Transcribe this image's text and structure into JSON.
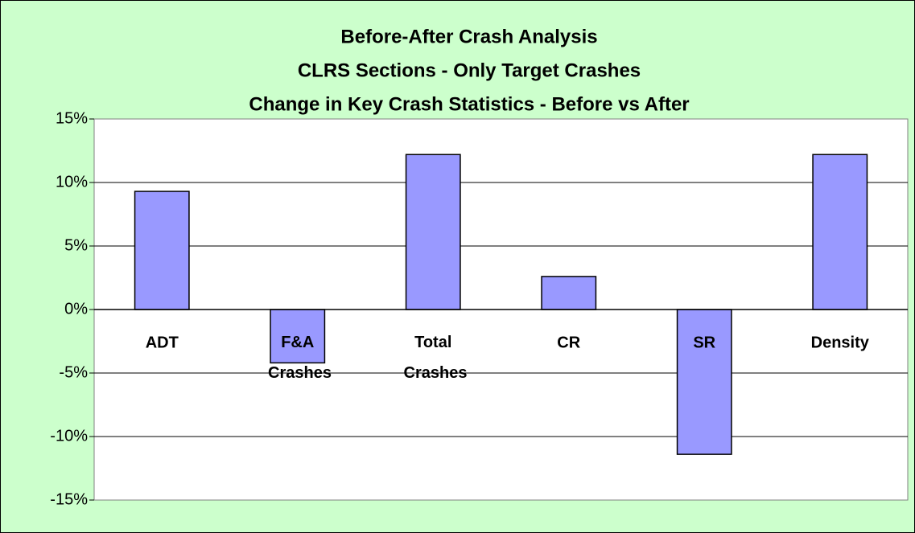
{
  "chart_data": {
    "type": "bar",
    "title": [
      "Before-After Crash Analysis",
      "CLRS Sections - Only Target Crashes",
      "Change in Key Crash Statistics - Before vs After"
    ],
    "categories": [
      "ADT",
      "F&A Crashes",
      "Total Crashes",
      "CR",
      "SR",
      "Density"
    ],
    "values": [
      9.3,
      -4.2,
      12.2,
      2.6,
      -11.4,
      12.2
    ],
    "color": "#9999ff",
    "ylim": [
      -15,
      15
    ],
    "yticks": [
      {
        "value": -15,
        "label": "-15%"
      },
      {
        "value": -10,
        "label": "-10%"
      },
      {
        "value": -5,
        "label": "-5%"
      },
      {
        "value": 0,
        "label": "0%"
      },
      {
        "value": 5,
        "label": "5%"
      },
      {
        "value": 10,
        "label": "10%"
      },
      {
        "value": 15,
        "label": "15%"
      }
    ],
    "grid": true
  }
}
